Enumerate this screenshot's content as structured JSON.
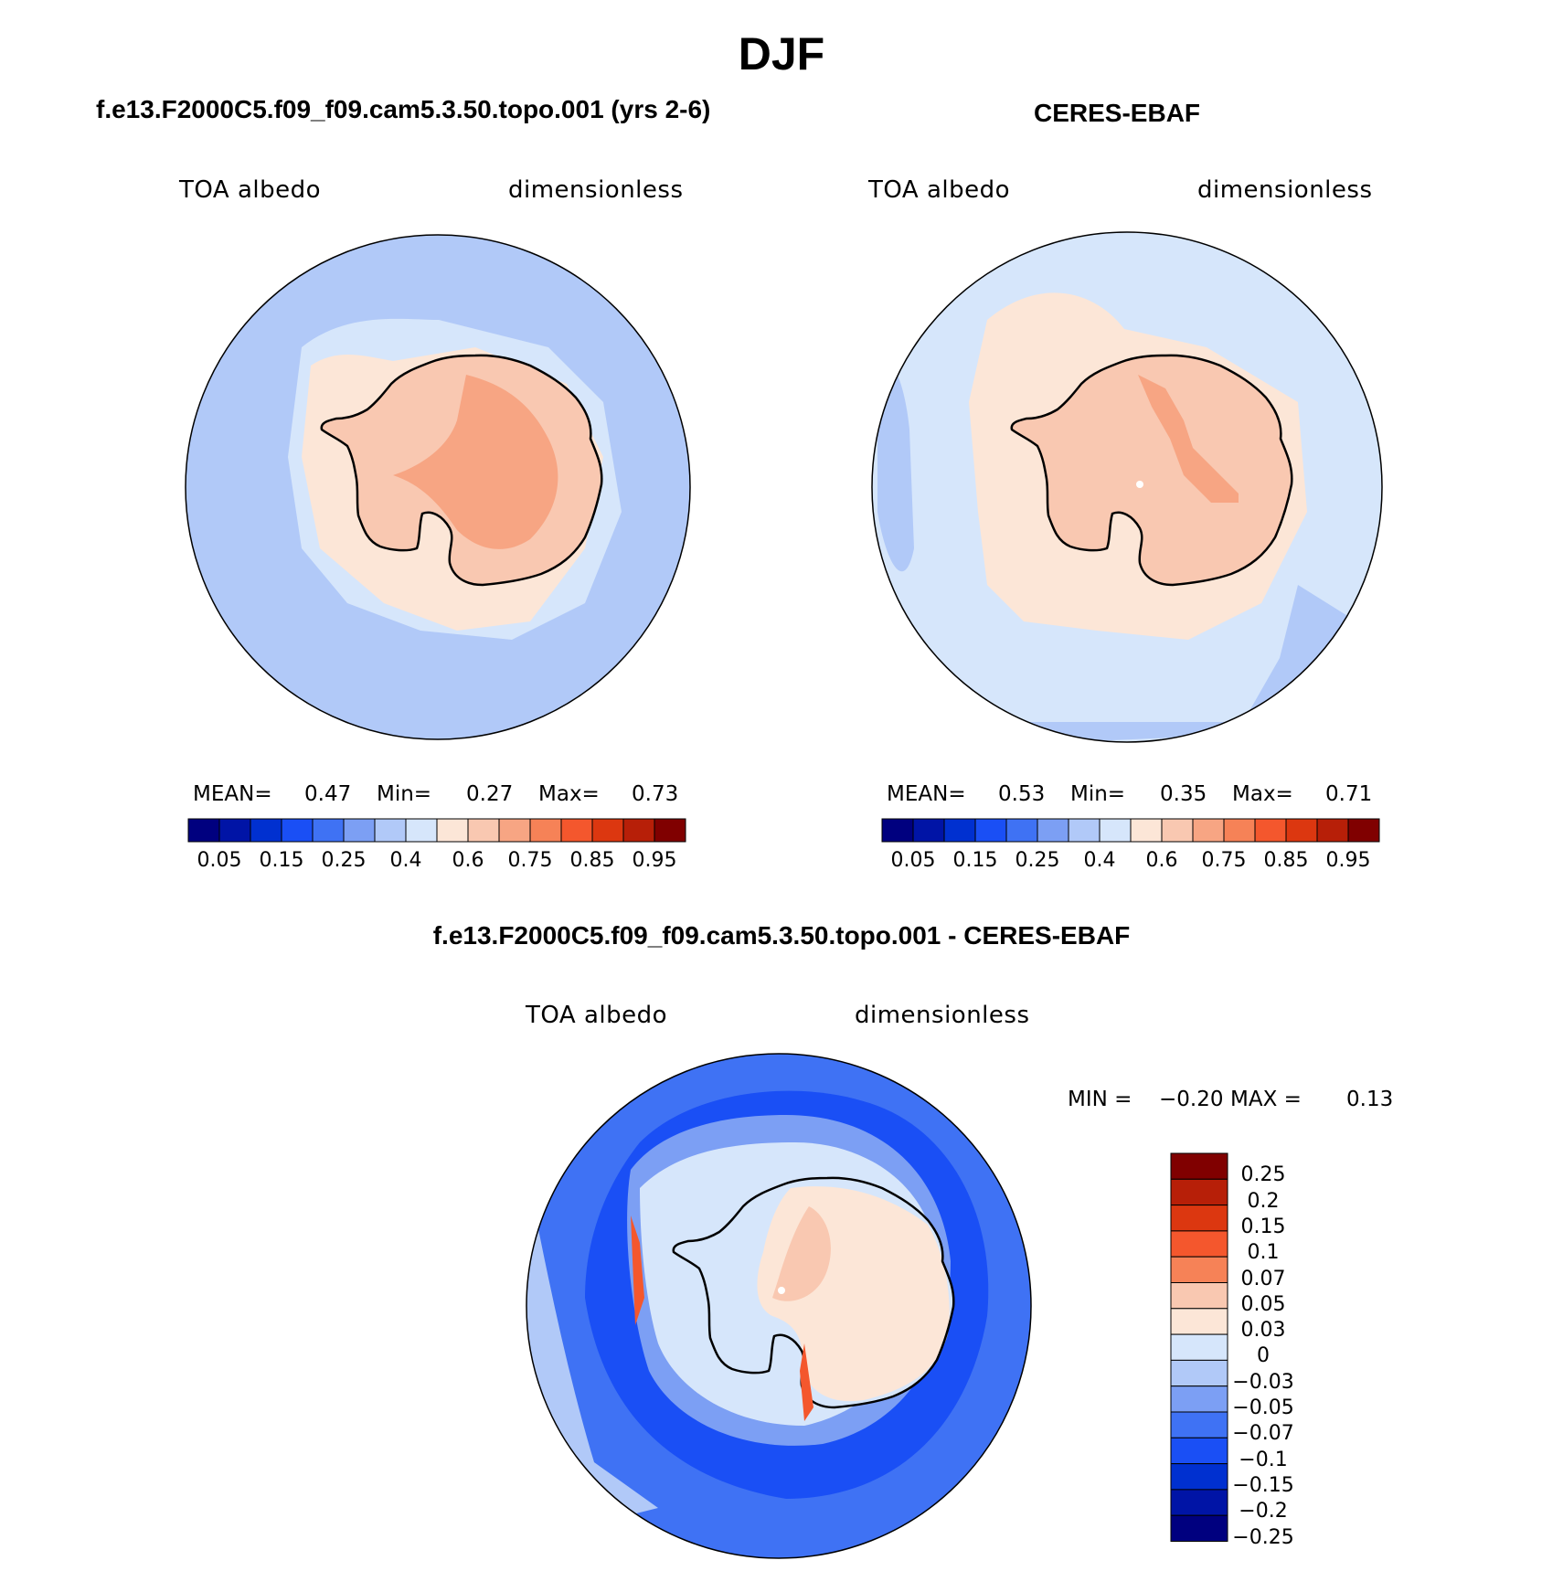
{
  "figure": {
    "title": "DJF",
    "colors": {
      "ocean_model": "#b7cdf7",
      "ocean_obs": "#d7e7f9",
      "ice_light": "#fbe3d3",
      "ice_mid": "#f8c6ad",
      "ice_high": "#f6a583",
      "coast": "#000000"
    }
  },
  "panels": [
    {
      "title": "f.e13.F2000C5.f09_f09.cam5.3.50.topo.001 (yrs 2-6)",
      "left_label": "TOA albedo",
      "right_label": "dimensionless",
      "stats": {
        "mean_label": "MEAN=",
        "mean": "0.47",
        "min_label": "Min=",
        "min": "0.27",
        "max_label": "Max=",
        "max": "0.73"
      }
    },
    {
      "title": "CERES-EBAF",
      "left_label": "TOA albedo",
      "right_label": "dimensionless",
      "stats": {
        "mean_label": "MEAN=",
        "mean": "0.53",
        "min_label": "Min=",
        "min": "0.35",
        "max_label": "Max=",
        "max": "0.71"
      }
    }
  ],
  "colorbar_abs": {
    "colors": [
      "#00007f",
      "#0014a6",
      "#0030d0",
      "#1a4ff5",
      "#3f72f4",
      "#7c9ff4",
      "#b1c9f8",
      "#d6e6fb",
      "#fce6d7",
      "#f9c8b1",
      "#f7a583",
      "#f68257",
      "#f4572d",
      "#dc3710",
      "#b71f08",
      "#800000"
    ],
    "tick_labels": [
      "0.05",
      "0.15",
      "0.25",
      "0.4",
      "0.6",
      "0.75",
      "0.85",
      "0.95"
    ]
  },
  "diff_panel": {
    "title": "f.e13.F2000C5.f09_f09.cam5.3.50.topo.001 - CERES-EBAF",
    "left_label": "TOA albedo",
    "right_label": "dimensionless",
    "min_label": "MIN =",
    "min": "−0.20",
    "max_label": "MAX =",
    "max": "0.13"
  },
  "colorbar_diff": {
    "colors": [
      "#800000",
      "#b71f08",
      "#dc3710",
      "#f4572d",
      "#f68257",
      "#f9c8b1",
      "#fce6d7",
      "#d6e6fb",
      "#b1c9f8",
      "#7c9ff4",
      "#3f72f4",
      "#1a4ff5",
      "#0030d0",
      "#0014a6",
      "#00007f"
    ],
    "tick_labels": [
      "0.25",
      "0.2",
      "0.15",
      "0.1",
      "0.07",
      "0.05",
      "0.03",
      "0",
      "−0.03",
      "−0.05",
      "−0.07",
      "−0.1",
      "−0.15",
      "−0.2",
      "−0.25"
    ]
  }
}
